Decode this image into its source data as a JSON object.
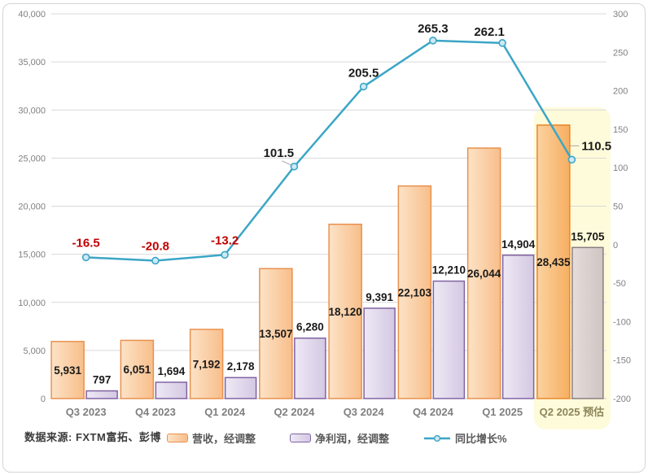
{
  "source_note": "数据来源: FXTM富拓、彭博",
  "colors": {
    "grid": "#d9d9d9",
    "axis_line": "#c6c6c6",
    "tick_text": "#808080",
    "x_label_text": "#7f7f7f",
    "x_label_forecast_text": "#8c865a",
    "bar_label_text": "#1a1a1a",
    "line": "#3ba6c6",
    "marker_fill": "#cfe9f3",
    "negative_label": "#c00000",
    "positive_label": "#1a1a1a",
    "highlight_fill": "#fefbda",
    "revenue_fill_light": "#fce3c7",
    "revenue_fill_dark": "#f8be8a",
    "revenue_stroke": "#e9914e",
    "revenue_forecast_fill_light": "#fbd2a0",
    "revenue_forecast_fill_dark": "#f7ae61",
    "revenue_forecast_stroke": "#e8882b",
    "netprofit_fill_light": "#eee9f5",
    "netprofit_fill_dark": "#d4c8e3",
    "netprofit_stroke": "#8064a2",
    "netprofit_forecast_fill_light": "#e4ddda",
    "netprofit_forecast_fill_dark": "#cfc5c3",
    "netprofit_forecast_stroke": "#897e83",
    "leader_line": "#a6a6a6"
  },
  "chart_data": {
    "type": "bar",
    "subtype": "combo-bar-line",
    "title": "",
    "categories": [
      "Q3 2023",
      "Q4 2023",
      "Q1 2024",
      "Q2 2024",
      "Q3 2024",
      "Q4 2024",
      "Q1 2025",
      "Q2 2025 预估"
    ],
    "highlight_index": 7,
    "grid": true,
    "legend_position": "bottom",
    "series": [
      {
        "name": "营收，经调整",
        "type": "bar",
        "axis": "left",
        "values": [
          5931,
          6051,
          7192,
          13507,
          18120,
          22103,
          26044,
          28435
        ],
        "labels": [
          "5,931",
          "6,051",
          "7,192",
          "13,507",
          "18,120",
          "22,103",
          "26,044",
          "28,435"
        ]
      },
      {
        "name": "净利润，经调整",
        "type": "bar",
        "axis": "left",
        "values": [
          797,
          1694,
          2178,
          6280,
          9391,
          12210,
          14904,
          15705
        ],
        "labels": [
          "797",
          "1,694",
          "2,178",
          "6,280",
          "9,391",
          "12,210",
          "14,904",
          "15,705"
        ]
      },
      {
        "name": "同比增长%",
        "type": "line",
        "axis": "right",
        "values": [
          -16.5,
          -20.8,
          -13.2,
          101.5,
          205.5,
          265.3,
          262.1,
          110.5
        ],
        "labels": [
          "-16.5",
          "-20.8",
          "-13.2",
          "101.5",
          "205.5",
          "265.3",
          "262.1",
          "110.5"
        ]
      }
    ],
    "left_axis": {
      "min": 0,
      "max": 40000,
      "step": 5000,
      "tick_labels": [
        "0",
        "5,000",
        "10,000",
        "15,000",
        "20,000",
        "25,000",
        "30,000",
        "35,000",
        "40,000"
      ]
    },
    "right_axis": {
      "min": -200,
      "max": 300,
      "step": 50,
      "tick_labels": [
        "-200",
        "-150",
        "-100",
        "-50",
        "0",
        "50",
        "100",
        "150",
        "200",
        "250",
        "300"
      ]
    }
  }
}
